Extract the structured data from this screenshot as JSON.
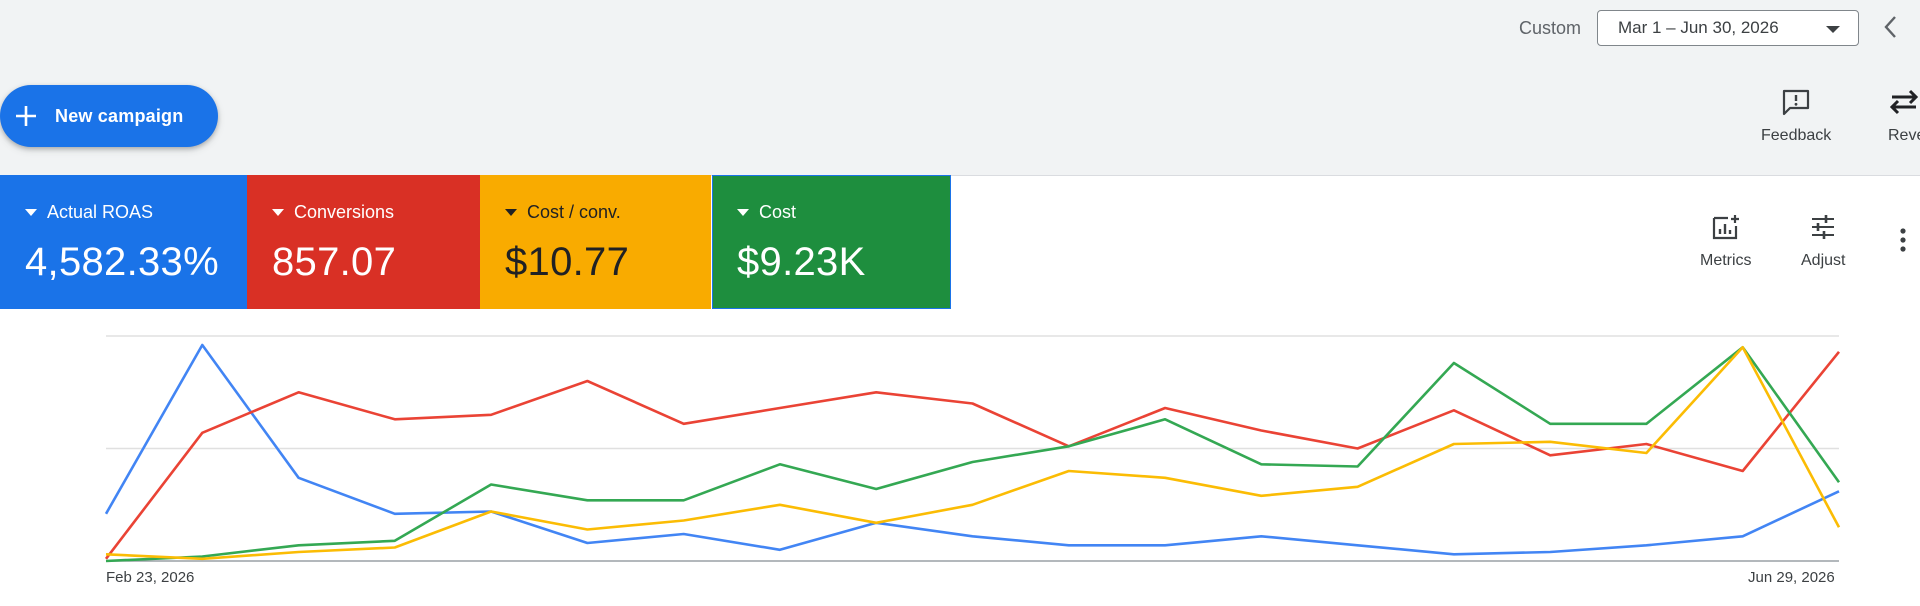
{
  "header": {
    "custom_label": "Custom",
    "date_range": "Mar 1 – Jun 30, 2026"
  },
  "actions": {
    "new_campaign_label": "New campaign",
    "feedback_label": "Feedback",
    "reverse_label": "Reve"
  },
  "metrics": [
    {
      "label": "Actual ROAS",
      "value": "4,582.33%",
      "color": "#1a73e8",
      "text_color": "#ffffff"
    },
    {
      "label": "Conversions",
      "value": "857.07",
      "color": "#d93025",
      "text_color": "#ffffff"
    },
    {
      "label": "Cost / conv.",
      "value": "$10.77",
      "color": "#f9ab00",
      "text_color": "#202124"
    },
    {
      "label": "Cost",
      "value": "$9.23K",
      "color": "#1e8e3e",
      "text_color": "#ffffff"
    }
  ],
  "chart_toolbar": {
    "metrics_label": "Metrics",
    "adjust_label": "Adjust"
  },
  "chart_data": {
    "type": "line",
    "x_start_label": "Feb 23, 2026",
    "x_end_label": "Jun 29, 2026",
    "x_ticks": [
      "Feb 23, 2026",
      "Jun 29, 2026"
    ],
    "grid": true,
    "y_axis_labels": "hidden",
    "point_count": 19,
    "series": [
      {
        "color": "#4285f4",
        "values": [
          0.21,
          0.96,
          0.37,
          0.21,
          0.22,
          0.08,
          0.12,
          0.05,
          0.17,
          0.11,
          0.07,
          0.07,
          0.11,
          0.07,
          0.03,
          0.04,
          0.07,
          0.11,
          0.31
        ]
      },
      {
        "color": "#ea4335",
        "values": [
          0.01,
          0.57,
          0.75,
          0.63,
          0.65,
          0.8,
          0.61,
          0.68,
          0.75,
          0.7,
          0.51,
          0.68,
          0.58,
          0.5,
          0.67,
          0.47,
          0.52,
          0.4,
          0.93
        ]
      },
      {
        "color": "#34a853",
        "values": [
          0.0,
          0.02,
          0.07,
          0.09,
          0.34,
          0.27,
          0.27,
          0.43,
          0.32,
          0.44,
          0.51,
          0.63,
          0.43,
          0.42,
          0.88,
          0.61,
          0.61,
          0.95,
          0.35
        ]
      },
      {
        "color": "#fbbc04",
        "values": [
          0.03,
          0.01,
          0.04,
          0.06,
          0.22,
          0.14,
          0.18,
          0.25,
          0.17,
          0.25,
          0.4,
          0.37,
          0.29,
          0.33,
          0.52,
          0.53,
          0.48,
          0.95,
          0.15
        ]
      }
    ]
  }
}
